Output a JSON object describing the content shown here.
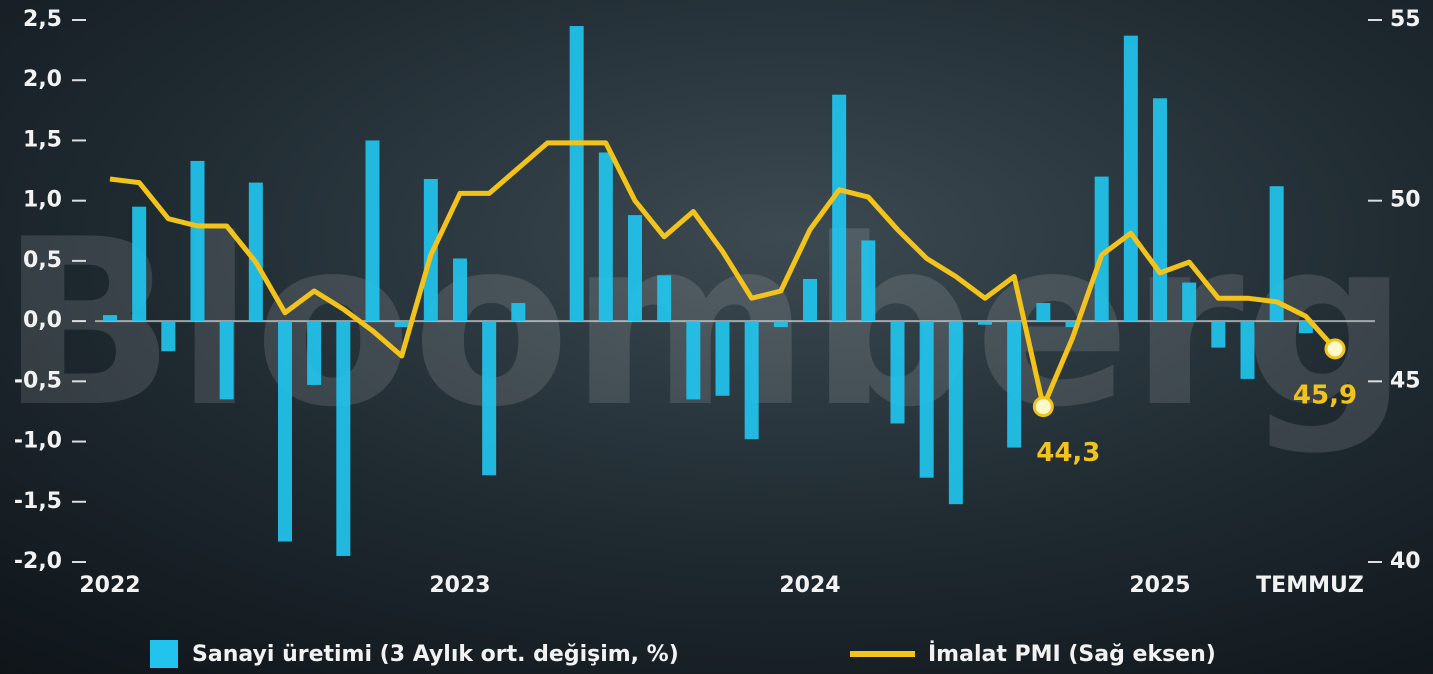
{
  "chart_data": {
    "type": "bar",
    "categories": [
      "2022",
      null,
      null,
      null,
      null,
      null,
      null,
      null,
      null,
      null,
      null,
      null,
      "2023",
      null,
      null,
      null,
      null,
      null,
      null,
      null,
      null,
      null,
      null,
      null,
      "2024",
      null,
      null,
      null,
      null,
      null,
      null,
      null,
      null,
      null,
      null,
      null,
      "2025",
      null,
      null,
      null,
      null,
      null,
      "TEMMUZ"
    ],
    "series": [
      {
        "name": "Sanayi üretimi (3 Aylık ort. değişim, %)",
        "type": "bar",
        "color": "#22c4ee",
        "values": [
          0.05,
          0.95,
          -0.25,
          1.33,
          -0.65,
          1.15,
          -1.83,
          -0.53,
          -1.95,
          1.5,
          -0.05,
          1.18,
          0.52,
          -1.28,
          0.15,
          0,
          2.45,
          1.4,
          0.88,
          0.38,
          -0.65,
          -0.62,
          -0.98,
          -0.05,
          0.35,
          1.88,
          0.67,
          -0.85,
          -1.3,
          -1.52,
          -0.03,
          -1.05,
          0.15,
          -0.05,
          1.2,
          2.37,
          1.85,
          0.32,
          -0.22,
          -0.48,
          1.12,
          -0.1,
          0
        ]
      },
      {
        "name": "İmalat PMI (Sağ eksen)",
        "type": "line",
        "axis": "y2",
        "color": "#f2c31a",
        "values": [
          50.6,
          50.5,
          49.5,
          49.3,
          49.3,
          48.3,
          46.9,
          47.5,
          47.0,
          46.4,
          45.7,
          48.5,
          50.2,
          50.2,
          50.9,
          51.6,
          51.6,
          51.6,
          50.0,
          49.0,
          49.7,
          48.6,
          47.3,
          47.5,
          49.2,
          50.3,
          50.1,
          49.2,
          48.4,
          47.9,
          47.3,
          47.9,
          44.3,
          46.2,
          48.5,
          49.1,
          48.0,
          48.3,
          47.3,
          47.3,
          47.2,
          46.8,
          45.9
        ],
        "value_labels": [
          null,
          null,
          null,
          null,
          null,
          null,
          null,
          null,
          null,
          null,
          null,
          null,
          null,
          null,
          null,
          null,
          null,
          null,
          null,
          null,
          null,
          null,
          null,
          null,
          null,
          null,
          null,
          null,
          null,
          null,
          null,
          null,
          "44,3",
          null,
          null,
          null,
          null,
          null,
          null,
          null,
          null,
          null,
          "45,9"
        ]
      }
    ],
    "ylim": [
      -2,
      2.5
    ],
    "yticks": [
      {
        "value": -2,
        "label": "-2,0"
      },
      {
        "value": -1.5,
        "label": "-1,5"
      },
      {
        "value": -1,
        "label": "-1,0"
      },
      {
        "value": -0.5,
        "label": "-0,5"
      },
      {
        "value": 0,
        "label": "0,0"
      },
      {
        "value": 0.5,
        "label": "0,5"
      },
      {
        "value": 1,
        "label": "1,0"
      },
      {
        "value": 1.5,
        "label": "1,5"
      },
      {
        "value": 2,
        "label": "2,0"
      },
      {
        "value": 2.5,
        "label": "2,5"
      }
    ],
    "y2lim": [
      40,
      55
    ],
    "y2ticks": [
      40,
      45,
      50,
      55
    ],
    "watermark": "Bloomberg"
  }
}
